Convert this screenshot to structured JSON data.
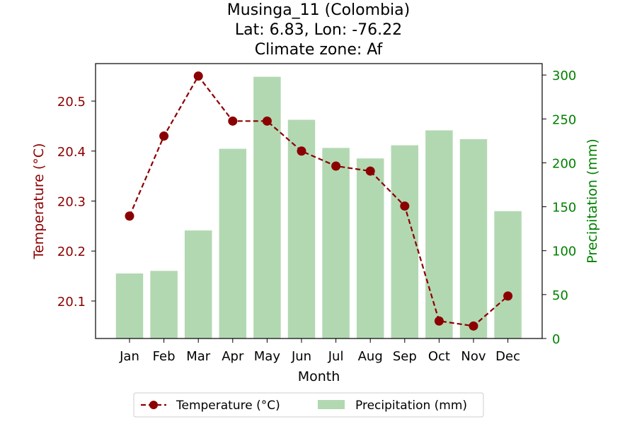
{
  "chart_data": {
    "type": "bar+line",
    "title_lines": [
      "Musinga_11 (Colombia)",
      "Lat: 6.83, Lon: -76.22",
      "Climate zone: Af"
    ],
    "xlabel": "Month",
    "ylabel_left": "Temperature (°C)",
    "ylabel_right": "Precipitation (mm)",
    "categories": [
      "Jan",
      "Feb",
      "Mar",
      "Apr",
      "May",
      "Jun",
      "Jul",
      "Aug",
      "Sep",
      "Oct",
      "Nov",
      "Dec"
    ],
    "series": [
      {
        "name": "Temperature (°C)",
        "kind": "line",
        "axis": "left",
        "values": [
          20.27,
          20.43,
          20.55,
          20.46,
          20.46,
          20.4,
          20.37,
          20.36,
          20.29,
          20.06,
          20.05,
          20.11
        ],
        "color": "#8b0000"
      },
      {
        "name": "Precipitation (mm)",
        "kind": "bar",
        "axis": "right",
        "values": [
          74,
          77,
          123,
          216,
          298,
          249,
          217,
          205,
          220,
          237,
          227,
          145
        ],
        "color": "#b2d8b2"
      }
    ],
    "ylim_left": [
      20.025,
      20.575
    ],
    "yticks_left": [
      "20.1",
      "20.2",
      "20.3",
      "20.4",
      "20.5"
    ],
    "ylim_right": [
      0,
      313
    ],
    "yticks_right": [
      "0",
      "50",
      "100",
      "150",
      "200",
      "250",
      "300"
    ],
    "left_axis_color": "#8b0000",
    "right_axis_color": "#008000",
    "grid": false,
    "legend_position": "bottom-center"
  }
}
